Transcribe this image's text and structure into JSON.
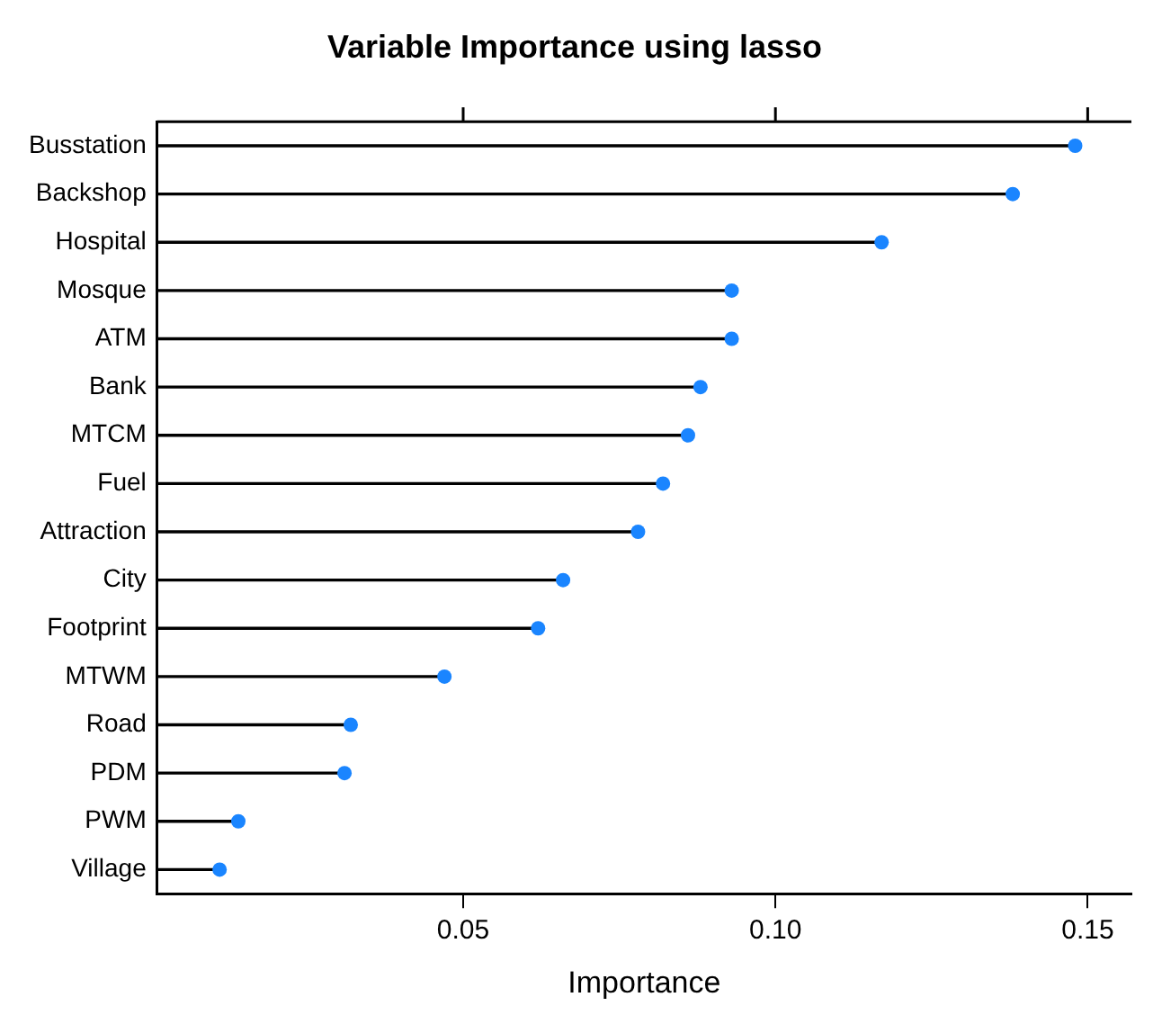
{
  "chart_data": {
    "type": "lollipop",
    "orientation": "horizontal",
    "title": "Variable Importance using lasso",
    "xlabel": "Importance",
    "categories": [
      "Busstation",
      "Backshop",
      "Hospital",
      "Mosque",
      "ATM",
      "Bank",
      "MTCM",
      "Fuel",
      "Attraction",
      "City",
      "Footprint",
      "MTWM",
      "Road",
      "PDM",
      "PWM",
      "Village"
    ],
    "series": [
      {
        "color": "#1a85ff",
        "values": [
          0.148,
          0.138,
          0.117,
          0.093,
          0.093,
          0.088,
          0.086,
          0.082,
          0.078,
          0.066,
          0.062,
          0.047,
          0.032,
          0.031,
          0.014,
          0.011
        ]
      }
    ],
    "xlim": [
      0.001,
      0.157
    ],
    "xticks": [
      {
        "value": 0.05,
        "label": "0.05"
      },
      {
        "value": 0.1,
        "label": "0.10"
      },
      {
        "value": 0.15,
        "label": "0.15"
      }
    ],
    "grid": false,
    "legend": false,
    "marker": "circle"
  }
}
